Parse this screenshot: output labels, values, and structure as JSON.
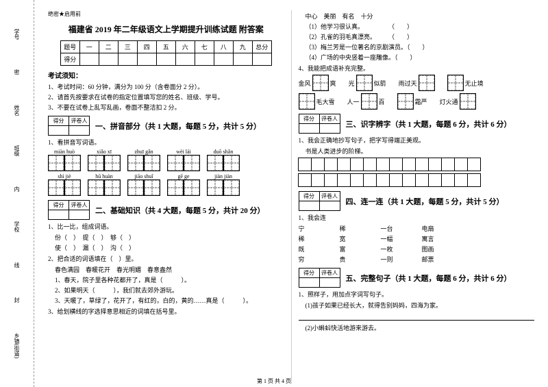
{
  "binding": {
    "items": [
      "学号",
      "姓名",
      "班级",
      "学校",
      "乡镇(街道)"
    ],
    "marks": [
      "密",
      "内",
      "线",
      "封"
    ]
  },
  "secret": "绝密★启用前",
  "title": "福建省 2019 年二年级语文上学期提升训练试题 附答案",
  "score_headers": [
    "题号",
    "一",
    "二",
    "三",
    "四",
    "五",
    "六",
    "七",
    "八",
    "九",
    "总分"
  ],
  "score_row2": "得分",
  "notice_head": "考试须知：",
  "notices": [
    "1、考试时间：60 分钟，满分为 100 分（含卷面分 2 分）。",
    "2、请首先按要求在试卷的指定位置填写您的姓名、班级、学号。",
    "3、不要在试卷上乱写乱画，卷面不整洁扣 2 分。"
  ],
  "mini_headers": [
    "得分",
    "评卷人"
  ],
  "sec1": {
    "title": "一、拼音部分（共 1 大题，每题 5 分，共计 5 分）",
    "q1": "1、看拼音写词语。",
    "row1": [
      "miàn huò",
      "xiǎo xī",
      "zhuī gǎn",
      "wèi lái",
      "duō shǎn"
    ],
    "row2": [
      "shì jiè",
      "hū huàn",
      "jiāo shuǐ",
      "gē ge",
      "jiàn jiàn"
    ]
  },
  "sec2": {
    "title": "二、基础知识（共 4 大题，每题 5 分，共计 20 分）",
    "q1": "1、比一比，组成词语。",
    "pairs": [
      [
        "份（　）",
        "提（　）",
        "够（　）"
      ],
      [
        "使（　）",
        "漏（　）",
        "沟（　）"
      ]
    ],
    "q2": "2、把合适的词语填在（　）里。",
    "opts": "春色满园　春暖花开　春光明媚　春意盎然",
    "lines": [
      "1、春天，院子里各种花都开了，真是（　　　）。",
      "2、如果明天（　　　），我们就去郊外游玩。",
      "3、天暖了，草绿了，花开了，有红的，白的，黄的……真是（　　　）。"
    ],
    "q3": "3、给划横线的字选择意思相近的词填在括号里。"
  },
  "right_top": {
    "opts": "中心　美丽　有名　十分",
    "items": [
      "（1）他学习很认真。　　　　　（　　）",
      "（2）孔雀的羽毛真漂亮。　　　（　　）",
      "（3）梅兰芳是一位著名的京剧演员。（　　）",
      "（4）广场的中央竖着一座雕像。（　　）"
    ],
    "q4": "4、我能把成语补充完整。",
    "idioms_r1": [
      {
        "pre": "金风",
        "post": "爽"
      },
      {
        "pre": "光",
        "post": "似箭"
      },
      {
        "pre": "雨过天",
        "post": ""
      },
      {
        "pre": "",
        "post": "无止境"
      }
    ],
    "idioms_r2": [
      {
        "pre": "",
        "post": "毛大雪"
      },
      {
        "pre": "人一",
        "post": "百"
      },
      {
        "pre": "",
        "post": "霜严"
      },
      {
        "pre": "灯火通",
        "post": ""
      }
    ]
  },
  "sec3": {
    "title": "三、识字辨字（共 1 大题，每题 6 分，共计 6 分）",
    "q1": "1、我会正确地抄写句子，把字写得端正美观。",
    "line": "书是人类进步的阶梯。"
  },
  "sec4": {
    "title": "四、连一连（共 1 大题，每题 5 分，共计 5 分）",
    "q1": "1、我会连",
    "rows": [
      [
        "宁",
        "稀",
        "一台",
        "电扇"
      ],
      [
        "稀",
        "宽",
        "一幅",
        "寓言"
      ],
      [
        "既",
        "富",
        "一枚",
        "图画"
      ],
      [
        "穷",
        "贵",
        "一则",
        "邮票"
      ]
    ]
  },
  "sec5": {
    "title": "五、完整句子（共 1 大题，每题 6 分，共计 6 分）",
    "q1": "1、照样子，用加点字词写句子。",
    "lines": [
      "(1)孩子如果已经长大，就得告别妈妈，四海为家。",
      "(2)小蝌蚪快活地游来游去。"
    ]
  },
  "footer": "第 1 页 共 4 页"
}
